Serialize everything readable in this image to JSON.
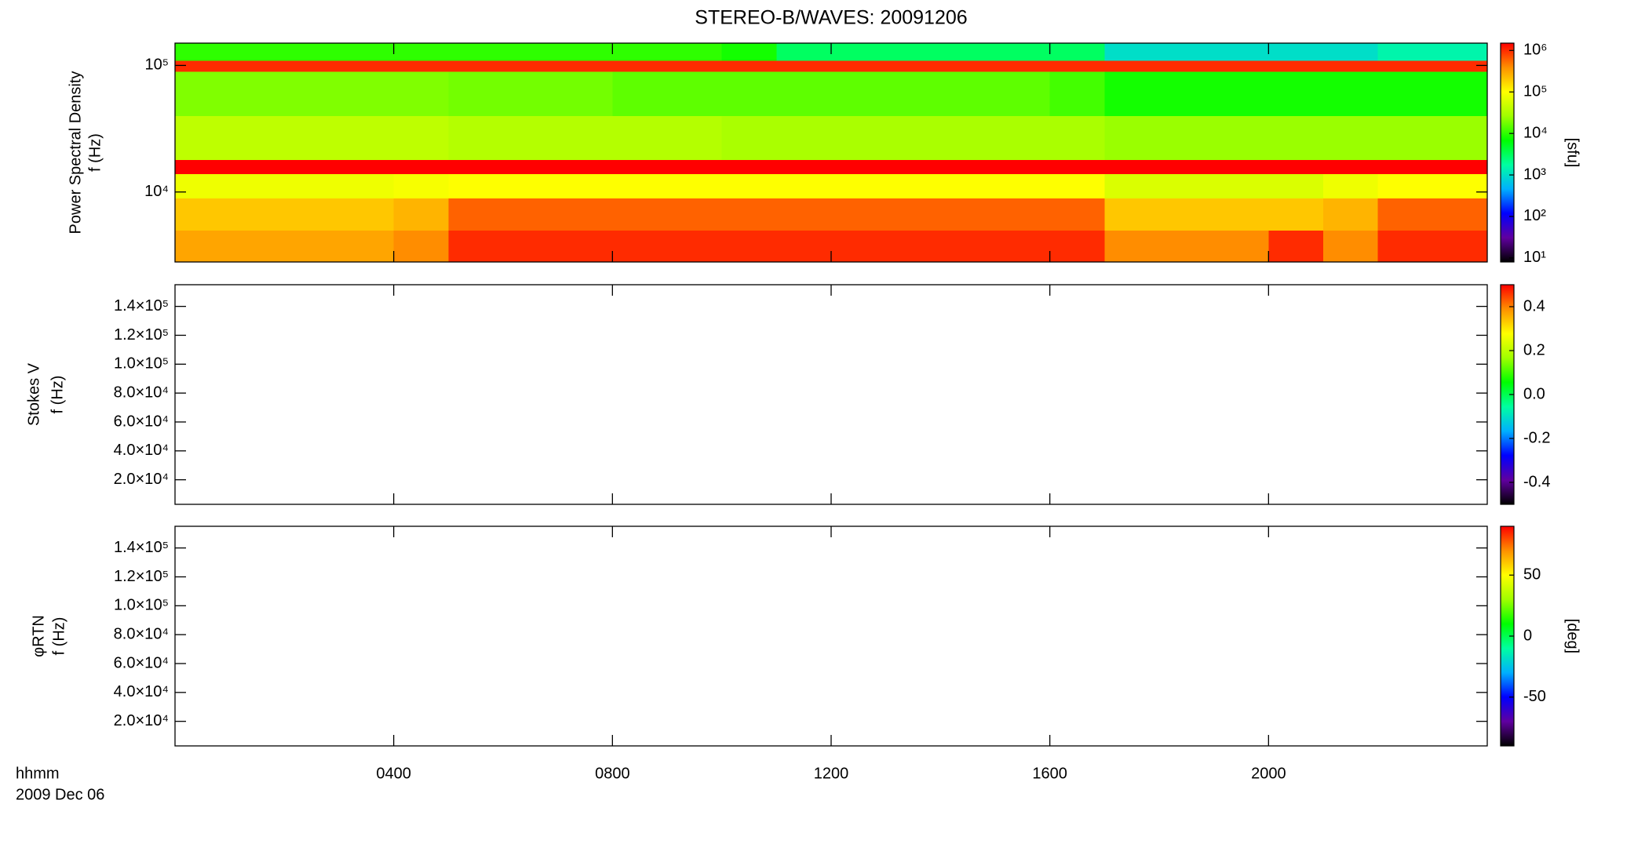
{
  "chart_data": [
    {
      "type": "spectrogram",
      "title": "STEREO-B/WAVES: 20091206",
      "ylabel": [
        "Power Spectral Density",
        "f (Hz)"
      ],
      "ylog": true,
      "ylim": [
        2800,
        150000
      ],
      "yticks": [
        {
          "value": 10000,
          "label": "10⁴"
        },
        {
          "value": 100000,
          "label": "10⁵"
        }
      ],
      "xbins": [
        0,
        1,
        2,
        3,
        4,
        5,
        6,
        7,
        8,
        9,
        10,
        11,
        12,
        13,
        14,
        15,
        16,
        17,
        18,
        19,
        20,
        21,
        22,
        23,
        24
      ],
      "ybins": [
        2800,
        5000,
        9000,
        14000,
        18000,
        40000,
        90000,
        110000,
        150000
      ],
      "z": [
        [
          300000,
          300000,
          300000,
          300000,
          400000,
          1000000,
          1000000,
          1000000,
          1000000,
          1000000,
          1000000,
          1000000,
          1000000,
          1000000,
          1000000,
          1000000,
          1000000,
          400000,
          400000,
          400000,
          1000000,
          400000,
          1000000,
          1000000
        ],
        [
          200000,
          200000,
          200000,
          200000,
          250000,
          600000,
          600000,
          600000,
          600000,
          600000,
          600000,
          600000,
          600000,
          600000,
          600000,
          600000,
          600000,
          200000,
          200000,
          200000,
          200000,
          250000,
          600000,
          600000
        ],
        [
          80000,
          80000,
          80000,
          80000,
          90000,
          100000,
          100000,
          100000,
          100000,
          100000,
          100000,
          100000,
          100000,
          100000,
          100000,
          100000,
          100000,
          60000,
          60000,
          60000,
          60000,
          80000,
          100000,
          100000
        ],
        [
          1500000,
          1500000,
          1500000,
          1500000,
          1500000,
          1500000,
          1500000,
          1500000,
          1500000,
          1500000,
          1500000,
          1500000,
          1500000,
          1500000,
          1500000,
          1500000,
          1500000,
          1500000,
          1500000,
          1500000,
          1500000,
          1500000,
          1500000,
          1500000
        ],
        [
          40000,
          40000,
          40000,
          40000,
          40000,
          35000,
          35000,
          35000,
          35000,
          35000,
          30000,
          30000,
          30000,
          30000,
          30000,
          30000,
          30000,
          25000,
          25000,
          25000,
          25000,
          25000,
          25000,
          25000
        ],
        [
          20000,
          20000,
          20000,
          20000,
          20000,
          18000,
          18000,
          18000,
          15000,
          15000,
          15000,
          15000,
          15000,
          15000,
          15000,
          15000,
          12000,
          8000,
          8000,
          8000,
          8000,
          8000,
          8000,
          8000
        ],
        [
          1000000,
          1000000,
          1000000,
          1000000,
          1000000,
          1000000,
          1000000,
          1000000,
          1000000,
          1000000,
          1000000,
          1000000,
          1000000,
          1000000,
          1000000,
          1000000,
          1000000,
          1000000,
          1000000,
          1000000,
          1000000,
          1000000,
          1000000,
          1000000
        ],
        [
          10000,
          10000,
          10000,
          10000,
          10000,
          10000,
          10000,
          10000,
          10000,
          10000,
          8000,
          3000,
          3000,
          3000,
          3000,
          3000,
          3000,
          1000,
          1000,
          1000,
          1000,
          1000,
          1500,
          1500
        ]
      ],
      "zlog": true,
      "zlim": [
        8,
        1500000
      ],
      "zlabel": "[sfu]",
      "zticks": [
        {
          "value": 10,
          "label": "10¹"
        },
        {
          "value": 100,
          "label": "10²"
        },
        {
          "value": 1000,
          "label": "10³"
        },
        {
          "value": 10000,
          "label": "10⁴"
        },
        {
          "value": 100000,
          "label": "10⁵"
        },
        {
          "value": 1000000,
          "label": "10⁶"
        }
      ],
      "colormap": [
        "#000000",
        "#6000a0",
        "#0000ff",
        "#00b0ff",
        "#00ffa0",
        "#00ff00",
        "#a0ff00",
        "#ffff00",
        "#ff9000",
        "#ff0000"
      ]
    },
    {
      "type": "spectrogram",
      "ylabel": [
        "Stokes V",
        "f (Hz)"
      ],
      "ylim": [
        3000,
        155000
      ],
      "yticks": [
        {
          "value": 20000,
          "label": "2.0×10⁴"
        },
        {
          "value": 40000,
          "label": "4.0×10⁴"
        },
        {
          "value": 60000,
          "label": "6.0×10⁴"
        },
        {
          "value": 80000,
          "label": "8.0×10⁴"
        },
        {
          "value": 100000,
          "label": "1.0×10⁵"
        },
        {
          "value": 120000,
          "label": "1.2×10⁵"
        },
        {
          "value": 140000,
          "label": "1.4×10⁵"
        }
      ],
      "zlim": [
        -0.5,
        0.5
      ],
      "zticks": [
        -0.4,
        -0.2,
        {
          "value": 0,
          "label": "0.0"
        },
        0.2,
        0.4
      ],
      "colormap": [
        "#000000",
        "#6000a0",
        "#0000ff",
        "#00b0ff",
        "#00ffa0",
        "#00ff00",
        "#a0ff00",
        "#ffff00",
        "#ff9000",
        "#ff0000"
      ]
    },
    {
      "type": "spectrogram",
      "ylabel": [
        "φRTN",
        "f (Hz)"
      ],
      "ylim": [
        3000,
        155000
      ],
      "yticks": [
        {
          "value": 20000,
          "label": "2.0×10⁴"
        },
        {
          "value": 40000,
          "label": "4.0×10⁴"
        },
        {
          "value": 60000,
          "label": "6.0×10⁴"
        },
        {
          "value": 80000,
          "label": "8.0×10⁴"
        },
        {
          "value": 100000,
          "label": "1.0×10⁵"
        },
        {
          "value": 120000,
          "label": "1.2×10⁵"
        },
        {
          "value": 140000,
          "label": "1.4×10⁵"
        }
      ],
      "zlim": [
        -90,
        90
      ],
      "zlabel": "[deg]",
      "zticks": [
        -50,
        0,
        50
      ],
      "colormap": [
        "#000000",
        "#6000a0",
        "#0000ff",
        "#00b0ff",
        "#00ffa0",
        "#00ff00",
        "#a0ff00",
        "#ffff00",
        "#ff9000",
        "#ff0000"
      ],
      "xlim": [
        0,
        24
      ],
      "xticks": [
        {
          "value": 4,
          "label": "0400"
        },
        {
          "value": 8,
          "label": "0800"
        },
        {
          "value": 12,
          "label": "1200"
        },
        {
          "value": 16,
          "label": "1600"
        },
        {
          "value": 20,
          "label": "2000"
        }
      ],
      "xlabel": "hhmm",
      "xlabel2": "2009 Dec 06"
    }
  ]
}
